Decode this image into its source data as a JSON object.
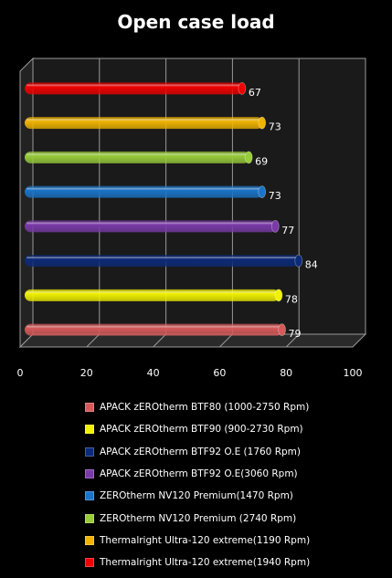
{
  "chart_data": {
    "type": "bar",
    "orientation": "horizontal",
    "title": "Open case load",
    "xlabel": "",
    "ylabel": "",
    "xlim": [
      0,
      100
    ],
    "x_ticks": [
      "0",
      "20",
      "40",
      "60",
      "80",
      "100"
    ],
    "grid": true,
    "legend_position": "bottom",
    "series": [
      {
        "name": "APACK zEROtherm BTF80 (1000-2750 Rpm)",
        "value": 79,
        "color": "#d65a5a"
      },
      {
        "name": "APACK zEROtherm BTF90 (900-2730 Rpm)",
        "value": 78,
        "color": "#f2f200"
      },
      {
        "name": "APACK zEROtherm BTF92 O.E (1760 Rpm)",
        "value": 84,
        "color": "#0c2a78"
      },
      {
        "name": "APACK zEROtherm BTF92 O.E(3060 Rpm)",
        "value": 77,
        "color": "#7a3aa8"
      },
      {
        "name": "ZEROtherm NV120 Premium(1470 Rpm)",
        "value": 73,
        "color": "#1a74c8"
      },
      {
        "name": "ZEROtherm NV120 Premium (2740 Rpm)",
        "value": 69,
        "color": "#98cc3a"
      },
      {
        "name": "Thermalright Ultra-120 extreme(1190 Rpm)",
        "value": 73,
        "color": "#f0b400"
      },
      {
        "name": "Thermalright Ultra-120 extreme(1940 Rpm)",
        "value": 67,
        "color": "#f00000"
      }
    ]
  }
}
